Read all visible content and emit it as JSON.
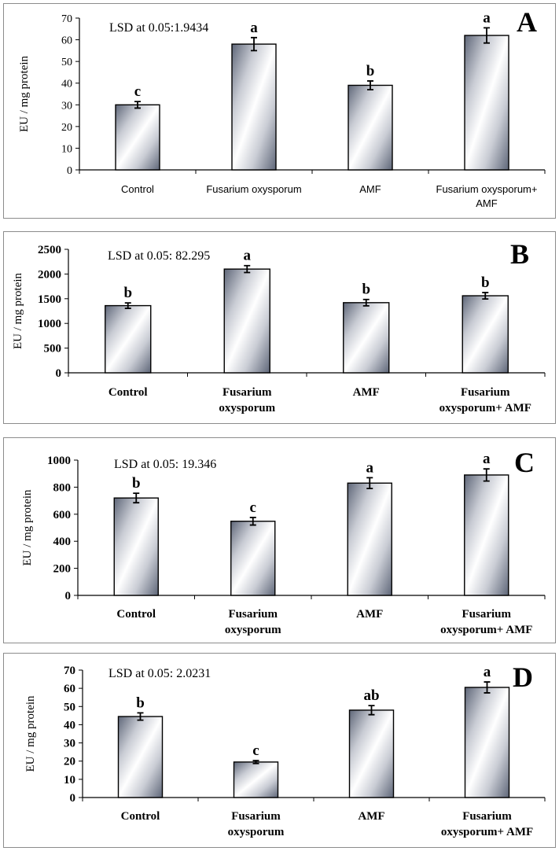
{
  "chart_data": [
    {
      "type": "bar",
      "panel_label": "A",
      "ylabel": "EU / mg protein",
      "annotation": "LSD at 0.05:1.9434",
      "categories": [
        "Control",
        "Fusarium oxysporum",
        "AMF",
        "Fusarium oxysporum+ AMF"
      ],
      "category_lines": [
        [
          "Control"
        ],
        [
          "Fusarium oxysporum"
        ],
        [
          "AMF"
        ],
        [
          "Fusarium oxysporum+",
          "AMF"
        ]
      ],
      "values": [
        30,
        58,
        39,
        62
      ],
      "errors": [
        1.5,
        3,
        2,
        3.5
      ],
      "significance": [
        "c",
        "a",
        "b",
        "a"
      ],
      "ylim": [
        0,
        70
      ],
      "yticks": [
        0,
        10,
        20,
        30,
        40,
        50,
        60,
        70
      ],
      "bold_labels": false
    },
    {
      "type": "bar",
      "panel_label": "B",
      "ylabel": "EU / mg protein",
      "annotation": "LSD at 0.05: 82.295",
      "categories": [
        "Control",
        "Fusarium oxysporum",
        "AMF",
        "Fusarium oxysporum+ AMF"
      ],
      "category_lines": [
        [
          "Control"
        ],
        [
          "Fusarium",
          "oxysporum"
        ],
        [
          "AMF"
        ],
        [
          "Fusarium",
          "oxysporum+ AMF"
        ]
      ],
      "values": [
        1360,
        2100,
        1420,
        1560
      ],
      "errors": [
        55,
        70,
        65,
        65
      ],
      "significance": [
        "b",
        "a",
        "b",
        "b"
      ],
      "ylim": [
        0,
        2500
      ],
      "yticks": [
        0,
        500,
        1000,
        1500,
        2000,
        2500
      ],
      "bold_labels": true
    },
    {
      "type": "bar",
      "panel_label": "C",
      "ylabel": "EU / mg protein",
      "annotation": "LSD at 0.05: 19.346",
      "categories": [
        "Control",
        "Fusarium oxysporum",
        "AMF",
        "Fusarium oxysporum+ AMF"
      ],
      "category_lines": [
        [
          "Control"
        ],
        [
          "Fusarium",
          "oxysporum"
        ],
        [
          "AMF"
        ],
        [
          "Fusarium",
          "oxysporum+ AMF"
        ]
      ],
      "values": [
        720,
        548,
        830,
        890
      ],
      "errors": [
        35,
        28,
        40,
        45
      ],
      "significance": [
        "b",
        "c",
        "a",
        "a"
      ],
      "ylim": [
        0,
        1000
      ],
      "yticks": [
        0,
        200,
        400,
        600,
        800,
        1000
      ],
      "bold_labels": true
    },
    {
      "type": "bar",
      "panel_label": "D",
      "ylabel": "EU / mg protein",
      "annotation": "LSD at 0.05: 2.0231",
      "categories": [
        "Control",
        "Fusarium oxysporum",
        "AMF",
        "Fusarium oxysporum+ AMF"
      ],
      "category_lines": [
        [
          "Control"
        ],
        [
          "Fusarium",
          "oxysporum"
        ],
        [
          "AMF"
        ],
        [
          "Fusarium",
          "oxysporum+ AMF"
        ]
      ],
      "values": [
        44.5,
        19.5,
        48,
        60.5
      ],
      "errors": [
        2,
        0.8,
        2.5,
        3
      ],
      "significance": [
        "b",
        "c",
        "ab",
        "a"
      ],
      "ylim": [
        0,
        70
      ],
      "yticks": [
        0,
        10,
        20,
        30,
        40,
        50,
        60,
        70
      ],
      "bold_labels": true
    }
  ]
}
